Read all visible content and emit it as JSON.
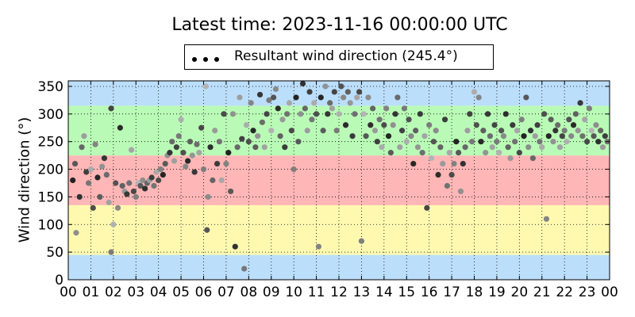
{
  "chart_data": {
    "type": "scatter",
    "title": "Latest time: 2023-11-16 00:00:00 UTC",
    "legend": {
      "label": "Resultant wind direction (245.4°)",
      "placement": "top-center",
      "marker_color": "#000000"
    },
    "xlabel": "",
    "ylabel": "Wind direction (°)",
    "xlim": [
      0,
      24
    ],
    "ylim": [
      0,
      360
    ],
    "x_ticks": [
      "00",
      "01",
      "02",
      "03",
      "04",
      "05",
      "06",
      "07",
      "08",
      "09",
      "10",
      "11",
      "12",
      "13",
      "14",
      "15",
      "16",
      "17",
      "18",
      "19",
      "20",
      "21",
      "22",
      "23",
      "00"
    ],
    "y_ticks": [
      "0",
      "50",
      "100",
      "150",
      "200",
      "250",
      "300",
      "350"
    ],
    "grid": true,
    "background_bands": [
      {
        "from": 0,
        "to": 45,
        "color": "#bbdefb"
      },
      {
        "from": 45,
        "to": 135,
        "color": "#fff9b0"
      },
      {
        "from": 135,
        "to": 225,
        "color": "#ffb6b6"
      },
      {
        "from": 225,
        "to": 315,
        "color": "#b9fbb6"
      },
      {
        "from": 315,
        "to": 360,
        "color": "#bbdefb"
      }
    ],
    "point_color_range": [
      "#222222",
      "#b4b4b4"
    ],
    "series": [
      {
        "values": [
          [
            0.2,
            180
          ],
          [
            0.3,
            210
          ],
          [
            0.35,
            85
          ],
          [
            0.5,
            150
          ],
          [
            0.6,
            240
          ],
          [
            0.7,
            260
          ],
          [
            0.8,
            195
          ],
          [
            0.9,
            175
          ],
          [
            1.0,
            200
          ],
          [
            1.1,
            130
          ],
          [
            1.2,
            245
          ],
          [
            1.3,
            185
          ],
          [
            1.4,
            150
          ],
          [
            1.5,
            205
          ],
          [
            1.6,
            220
          ],
          [
            1.7,
            190
          ],
          [
            1.8,
            140
          ],
          [
            1.9,
            310
          ],
          [
            1.9,
            50
          ],
          [
            2.0,
            100
          ],
          [
            2.1,
            175
          ],
          [
            2.2,
            130
          ],
          [
            2.3,
            275
          ],
          [
            2.4,
            170
          ],
          [
            2.5,
            160
          ],
          [
            2.6,
            155
          ],
          [
            2.7,
            175
          ],
          [
            2.8,
            235
          ],
          [
            2.9,
            160
          ],
          [
            3.0,
            150
          ],
          [
            3.1,
            175
          ],
          [
            3.2,
            170
          ],
          [
            3.3,
            180
          ],
          [
            3.4,
            165
          ],
          [
            3.5,
            175
          ],
          [
            3.6,
            180
          ],
          [
            3.7,
            185
          ],
          [
            3.8,
            170
          ],
          [
            3.9,
            195
          ],
          [
            4.0,
            180
          ],
          [
            4.1,
            200
          ],
          [
            4.2,
            190
          ],
          [
            4.3,
            210
          ],
          [
            4.4,
            225
          ],
          [
            4.5,
            230
          ],
          [
            4.6,
            250
          ],
          [
            4.7,
            215
          ],
          [
            4.8,
            240
          ],
          [
            4.9,
            260
          ],
          [
            5.0,
            290
          ],
          [
            5.1,
            230
          ],
          [
            5.2,
            205
          ],
          [
            5.3,
            215
          ],
          [
            5.4,
            250
          ],
          [
            5.5,
            225
          ],
          [
            5.6,
            195
          ],
          [
            5.7,
            245
          ],
          [
            5.8,
            230
          ],
          [
            5.9,
            275
          ],
          [
            6.0,
            200
          ],
          [
            6.1,
            350
          ],
          [
            6.15,
            90
          ],
          [
            6.2,
            150
          ],
          [
            6.3,
            240
          ],
          [
            6.4,
            180
          ],
          [
            6.5,
            270
          ],
          [
            6.6,
            210
          ],
          [
            6.7,
            250
          ],
          [
            6.8,
            180
          ],
          [
            6.9,
            300
          ],
          [
            7.0,
            210
          ],
          [
            7.1,
            230
          ],
          [
            7.2,
            160
          ],
          [
            7.3,
            300
          ],
          [
            7.4,
            60
          ],
          [
            7.5,
            240
          ],
          [
            7.6,
            330
          ],
          [
            7.7,
            255
          ],
          [
            7.8,
            20
          ],
          [
            7.9,
            280
          ],
          [
            8.0,
            250
          ],
          [
            8.1,
            320
          ],
          [
            8.2,
            270
          ],
          [
            8.3,
            240
          ],
          [
            8.4,
            260
          ],
          [
            8.5,
            335
          ],
          [
            8.6,
            285
          ],
          [
            8.7,
            240
          ],
          [
            8.8,
            300
          ],
          [
            8.9,
            325
          ],
          [
            9.0,
            270
          ],
          [
            9.1,
            330
          ],
          [
            9.2,
            345
          ],
          [
            9.3,
            310
          ],
          [
            9.4,
            260
          ],
          [
            9.5,
            290
          ],
          [
            9.6,
            240
          ],
          [
            9.7,
            300
          ],
          [
            9.8,
            320
          ],
          [
            9.9,
            270
          ],
          [
            10.0,
            200
          ],
          [
            10.1,
            330
          ],
          [
            10.2,
            250
          ],
          [
            10.3,
            300
          ],
          [
            10.4,
            355
          ],
          [
            10.5,
            310
          ],
          [
            10.6,
            270
          ],
          [
            10.7,
            340
          ],
          [
            10.8,
            290
          ],
          [
            10.9,
            320
          ],
          [
            11.0,
            300
          ],
          [
            11.1,
            60
          ],
          [
            11.2,
            330
          ],
          [
            11.3,
            270
          ],
          [
            11.4,
            350
          ],
          [
            11.5,
            300
          ],
          [
            11.6,
            320
          ],
          [
            11.7,
            310
          ],
          [
            11.8,
            340
          ],
          [
            11.9,
            270
          ],
          [
            12.0,
            300
          ],
          [
            12.1,
            350
          ],
          [
            12.2,
            330
          ],
          [
            12.3,
            280
          ],
          [
            12.4,
            340
          ],
          [
            12.5,
            320
          ],
          [
            12.6,
            260
          ],
          [
            12.7,
            300
          ],
          [
            12.8,
            330
          ],
          [
            12.9,
            340
          ],
          [
            13.0,
            70
          ],
          [
            13.1,
            300
          ],
          [
            13.2,
            260
          ],
          [
            13.3,
            330
          ],
          [
            13.4,
            280
          ],
          [
            13.5,
            310
          ],
          [
            13.6,
            270
          ],
          [
            13.7,
            250
          ],
          [
            13.8,
            290
          ],
          [
            13.9,
            240
          ],
          [
            14.0,
            280
          ],
          [
            14.1,
            310
          ],
          [
            14.2,
            260
          ],
          [
            14.3,
            230
          ],
          [
            14.4,
            280
          ],
          [
            14.5,
            300
          ],
          [
            14.6,
            330
          ],
          [
            14.7,
            240
          ],
          [
            14.8,
            270
          ],
          [
            14.9,
            310
          ],
          [
            15.0,
            250
          ],
          [
            15.1,
            290
          ],
          [
            15.2,
            260
          ],
          [
            15.3,
            210
          ],
          [
            15.4,
            270
          ],
          [
            15.5,
            240
          ],
          [
            15.6,
            300
          ],
          [
            15.7,
            230
          ],
          [
            15.8,
            260
          ],
          [
            15.9,
            130
          ],
          [
            16.0,
            280
          ],
          [
            16.1,
            220
          ],
          [
            16.2,
            250
          ],
          [
            16.3,
            270
          ],
          [
            16.4,
            190
          ],
          [
            16.5,
            240
          ],
          [
            16.6,
            210
          ],
          [
            16.7,
            290
          ],
          [
            16.8,
            170
          ],
          [
            16.9,
            230
          ],
          [
            17.0,
            190
          ],
          [
            17.1,
            210
          ],
          [
            17.2,
            250
          ],
          [
            17.3,
            230
          ],
          [
            17.4,
            160
          ],
          [
            17.5,
            210
          ],
          [
            17.6,
            240
          ],
          [
            17.7,
            270
          ],
          [
            17.8,
            300
          ],
          [
            17.9,
            250
          ],
          [
            18.0,
            340
          ],
          [
            18.1,
            280
          ],
          [
            18.2,
            330
          ],
          [
            18.3,
            250
          ],
          [
            18.4,
            270
          ],
          [
            18.5,
            230
          ],
          [
            18.6,
            300
          ],
          [
            18.7,
            260
          ],
          [
            18.8,
            240
          ],
          [
            18.9,
            280
          ],
          [
            19.0,
            250
          ],
          [
            19.1,
            230
          ],
          [
            19.2,
            270
          ],
          [
            19.3,
            260
          ],
          [
            19.4,
            300
          ],
          [
            19.5,
            240
          ],
          [
            19.6,
            220
          ],
          [
            19.7,
            280
          ],
          [
            19.8,
            250
          ],
          [
            19.9,
            270
          ],
          [
            20.0,
            230
          ],
          [
            20.1,
            290
          ],
          [
            20.2,
            260
          ],
          [
            20.3,
            330
          ],
          [
            20.4,
            240
          ],
          [
            20.5,
            270
          ],
          [
            20.6,
            220
          ],
          [
            20.7,
            260
          ],
          [
            20.8,
            280
          ],
          [
            20.9,
            250
          ],
          [
            21.0,
            240
          ],
          [
            21.1,
            300
          ],
          [
            21.2,
            110
          ],
          [
            21.3,
            260
          ],
          [
            21.4,
            290
          ],
          [
            21.5,
            250
          ],
          [
            21.6,
            270
          ],
          [
            21.7,
            280
          ],
          [
            21.8,
            240
          ],
          [
            21.9,
            260
          ],
          [
            22.0,
            270
          ],
          [
            22.1,
            250
          ],
          [
            22.2,
            290
          ],
          [
            22.3,
            260
          ],
          [
            22.4,
            280
          ],
          [
            22.5,
            300
          ],
          [
            22.6,
            270
          ],
          [
            22.7,
            320
          ],
          [
            22.8,
            260
          ],
          [
            22.9,
            290
          ],
          [
            23.0,
            250
          ],
          [
            23.1,
            310
          ],
          [
            23.2,
            270
          ],
          [
            23.3,
            260
          ],
          [
            23.4,
            280
          ],
          [
            23.5,
            250
          ],
          [
            23.6,
            270
          ],
          [
            23.7,
            240
          ],
          [
            23.8,
            260
          ],
          [
            23.9,
            250
          ]
        ]
      }
    ]
  }
}
